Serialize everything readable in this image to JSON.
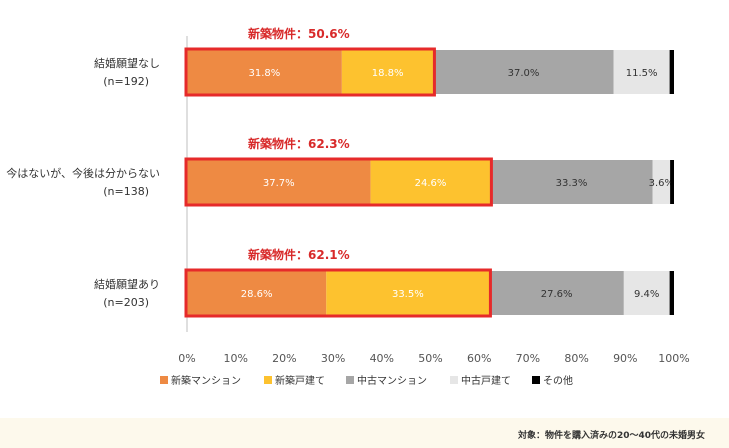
{
  "colors": {
    "new_condo": "#ee8a43",
    "new_house": "#fdc22f",
    "used_condo": "#a6a6a6",
    "used_house": "#e6e6e6",
    "other": "#000000",
    "highlight": "#e62a2a",
    "highlight_text": "#d82a2a"
  },
  "footnote": "対象：物件を購入済みの20～40代の未婚男女",
  "chart_data": {
    "type": "bar",
    "orientation": "horizontal",
    "stacked": true,
    "categories": [
      {
        "label": "結婚願望なし",
        "n": "(n=192)"
      },
      {
        "label": "今はないが、今後は分からない",
        "n": "(n=138)"
      },
      {
        "label": "結婚願望あり",
        "n": "(n=203)"
      }
    ],
    "series": [
      {
        "name": "新築マンション",
        "color_key": "new_condo",
        "values": [
          31.8,
          37.7,
          28.6
        ],
        "labels": [
          "31.8%",
          "37.7%",
          "28.6%"
        ],
        "label_color": "#ffffff"
      },
      {
        "name": "新築戸建て",
        "color_key": "new_house",
        "values": [
          18.8,
          24.6,
          33.5
        ],
        "labels": [
          "18.8%",
          "24.6%",
          "33.5%"
        ],
        "label_color": "#ffffff"
      },
      {
        "name": "中古マンション",
        "color_key": "used_condo",
        "values": [
          37.0,
          33.3,
          27.6
        ],
        "labels": [
          "37.0%",
          "33.3%",
          "27.6%"
        ],
        "label_color": "#333333"
      },
      {
        "name": "中古戸建て",
        "color_key": "used_house",
        "values": [
          11.5,
          3.6,
          9.4
        ],
        "labels": [
          "11.5%",
          "3.6%",
          "9.4%"
        ],
        "label_color": "#333333"
      },
      {
        "name": "その他",
        "color_key": "other",
        "values": [
          0.9,
          0.8,
          0.9
        ],
        "labels": [
          "",
          "",
          ""
        ],
        "label_color": "#ffffff"
      }
    ],
    "annotations": [
      {
        "text": "新築物件：50.6%",
        "value": 50.6
      },
      {
        "text": "新築物件：62.3%",
        "value": 62.3
      },
      {
        "text": "新築物件：62.1%",
        "value": 62.1
      }
    ],
    "xlim": [
      0,
      100
    ],
    "xticks": [
      "0%",
      "10%",
      "20%",
      "30%",
      "40%",
      "50%",
      "60%",
      "70%",
      "80%",
      "90%",
      "100%"
    ],
    "legend_position": "bottom-left",
    "grid": false
  }
}
